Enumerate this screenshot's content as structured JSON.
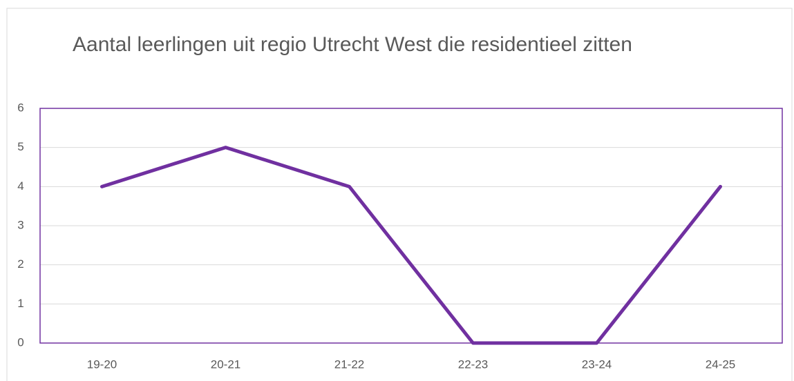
{
  "chart_data": {
    "type": "line",
    "title": "Aantal leerlingen uit regio Utrecht West die residentieel zitten",
    "categories": [
      "19-20",
      "20-21",
      "21-22",
      "22-23",
      "23-24",
      "24-25"
    ],
    "values": [
      4,
      5,
      4,
      0,
      0,
      4
    ],
    "color": "#7030a0",
    "ylim": [
      0,
      6
    ],
    "yticks": [
      0,
      1,
      2,
      3,
      4,
      5,
      6
    ],
    "grid": true
  }
}
